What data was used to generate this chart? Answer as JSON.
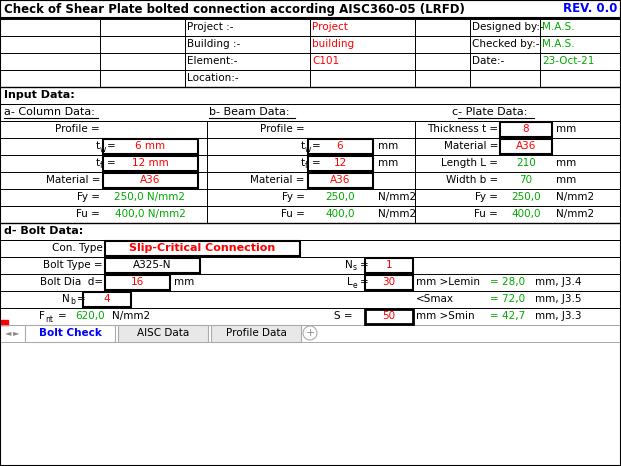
{
  "title": "Check of Shear Plate bolted connection according AISC360-05 (LRFD)",
  "rev": "REV. 0.0",
  "bg_color": "#FFFFFF",
  "tab_labels": [
    "Bolt Check",
    "AISC Data",
    "Profile Data"
  ],
  "project_rows": [
    [
      "Project :-",
      "Project",
      "Designed by:-",
      "M.A.S."
    ],
    [
      "Building :-",
      "building",
      "Checked by:-",
      "M.A.S."
    ],
    [
      "Element:-",
      "C101",
      "Date:-",
      "23-Oct-21"
    ],
    [
      "Location:-",
      "",
      "",
      ""
    ]
  ],
  "input_section": "Input Data:",
  "col_header": "a- Column Data:",
  "beam_header": "b- Beam Data:",
  "plate_header": "c- Plate Data:",
  "bolt_header": "d- Bolt Data:",
  "col_rows": [
    [
      "Profile =",
      ""
    ],
    [
      "tw=",
      "6 mm"
    ],
    [
      "tf=",
      "12 mm"
    ],
    [
      "Material =",
      "A36"
    ],
    [
      "Fy =",
      "250,0 N/mm2"
    ],
    [
      "Fu =",
      "400,0 N/mm2"
    ]
  ],
  "col_box": [
    false,
    true,
    true,
    true,
    false,
    false
  ],
  "col_red": [
    false,
    true,
    true,
    true,
    false,
    false
  ],
  "beam_rows": [
    [
      "Profile =",
      "",
      ""
    ],
    [
      "tw=",
      "6",
      "mm"
    ],
    [
      "tf=",
      "12",
      "mm"
    ],
    [
      "Material =",
      "A36",
      ""
    ],
    [
      "Fy =",
      "250,0",
      "N/mm2"
    ],
    [
      "Fu =",
      "400,0",
      "N/mm2"
    ]
  ],
  "beam_box": [
    false,
    true,
    true,
    true,
    false,
    false
  ],
  "beam_red": [
    false,
    true,
    true,
    true,
    false,
    false
  ],
  "plate_rows": [
    [
      "Thickness t =",
      "8",
      "mm"
    ],
    [
      "Material =",
      "A36",
      ""
    ],
    [
      "Length L =",
      "210",
      "mm"
    ],
    [
      "Width b =",
      "70",
      "mm"
    ],
    [
      "Fy =",
      "250,0",
      "N/mm2"
    ],
    [
      "Fu =",
      "400,0",
      "N/mm2"
    ]
  ],
  "plate_box": [
    true,
    true,
    false,
    false,
    false,
    false
  ],
  "plate_red": [
    true,
    true,
    false,
    false,
    false,
    false
  ]
}
